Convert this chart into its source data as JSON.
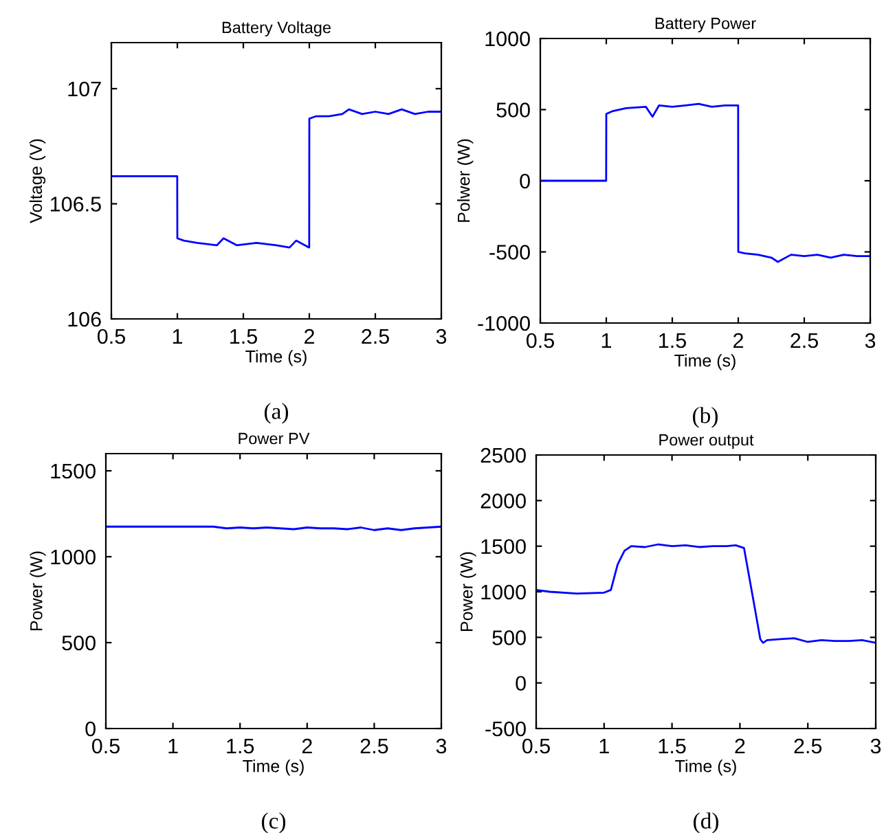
{
  "chart_data": [
    {
      "type": "line",
      "title": "Battery Voltage",
      "xlabel": "Time (s)",
      "ylabel": "Voltage (V)",
      "annotations": [
        "(a)"
      ],
      "x": [
        0.5,
        0.999,
        1.0,
        1.05,
        1.15,
        1.3,
        1.35,
        1.45,
        1.6,
        1.75,
        1.85,
        1.9,
        1.999,
        2.0,
        2.05,
        2.15,
        2.25,
        2.3,
        2.4,
        2.5,
        2.6,
        2.7,
        2.8,
        2.9,
        3.0
      ],
      "series": [
        {
          "color": "#0000ff",
          "values": [
            106.62,
            106.62,
            106.35,
            106.34,
            106.33,
            106.32,
            106.35,
            106.32,
            106.33,
            106.32,
            106.31,
            106.34,
            106.31,
            106.87,
            106.88,
            106.88,
            106.89,
            106.91,
            106.89,
            106.9,
            106.89,
            106.91,
            106.89,
            106.9,
            106.9
          ]
        }
      ],
      "xlim": [
        0.5,
        3
      ],
      "ylim": [
        106,
        107.2
      ],
      "xticks": [
        0.5,
        1,
        1.5,
        2,
        2.5,
        3
      ],
      "yticks": [
        106,
        106.5,
        107
      ]
    },
    {
      "type": "line",
      "title": "Battery Power",
      "xlabel": "Time (s)",
      "ylabel": "Polwer (W)",
      "annotations": [
        "(b)"
      ],
      "x": [
        0.5,
        0.999,
        1.0,
        1.05,
        1.15,
        1.3,
        1.35,
        1.4,
        1.5,
        1.6,
        1.7,
        1.8,
        1.9,
        1.999,
        2.0,
        2.05,
        2.15,
        2.25,
        2.3,
        2.4,
        2.5,
        2.6,
        2.7,
        2.8,
        2.9,
        3.0
      ],
      "series": [
        {
          "color": "#0000ff",
          "values": [
            0,
            0,
            470,
            490,
            510,
            520,
            450,
            530,
            520,
            530,
            540,
            520,
            530,
            530,
            -500,
            -510,
            -520,
            -540,
            -570,
            -520,
            -530,
            -520,
            -540,
            -520,
            -530,
            -530
          ]
        }
      ],
      "xlim": [
        0.5,
        3
      ],
      "ylim": [
        -1000,
        1000
      ],
      "xticks": [
        0.5,
        1,
        1.5,
        2,
        2.5,
        3
      ],
      "yticks": [
        -1000,
        -500,
        0,
        500,
        1000
      ]
    },
    {
      "type": "line",
      "title": "Power PV",
      "xlabel": "Time (s)",
      "ylabel": "Power (W)",
      "annotations": [
        "(c)"
      ],
      "x": [
        0.5,
        1.3,
        1.4,
        1.5,
        1.6,
        1.7,
        1.8,
        1.9,
        2.0,
        2.1,
        2.2,
        2.3,
        2.4,
        2.5,
        2.6,
        2.7,
        2.8,
        3.0
      ],
      "series": [
        {
          "color": "#0000ff",
          "values": [
            1175,
            1175,
            1165,
            1170,
            1165,
            1170,
            1165,
            1160,
            1170,
            1165,
            1165,
            1160,
            1170,
            1155,
            1165,
            1155,
            1165,
            1175
          ]
        }
      ],
      "xlim": [
        0.5,
        3
      ],
      "ylim": [
        0,
        1600
      ],
      "xticks": [
        0.5,
        1,
        1.5,
        2,
        2.5,
        3
      ],
      "yticks": [
        0,
        500,
        1000,
        1500
      ]
    },
    {
      "type": "line",
      "title": "Power output",
      "xlabel": "Time (s)",
      "ylabel": "Power (W)",
      "annotations": [
        "(d)"
      ],
      "x": [
        0.5,
        0.6,
        0.8,
        1.0,
        1.05,
        1.1,
        1.15,
        1.2,
        1.3,
        1.4,
        1.5,
        1.6,
        1.7,
        1.8,
        1.9,
        1.97,
        2.03,
        2.1,
        2.15,
        2.17,
        2.2,
        2.3,
        2.4,
        2.5,
        2.6,
        2.7,
        2.8,
        2.9,
        3.0
      ],
      "series": [
        {
          "color": "#0000ff",
          "values": [
            1020,
            1000,
            980,
            990,
            1020,
            1300,
            1450,
            1500,
            1490,
            1520,
            1500,
            1510,
            1490,
            1500,
            1500,
            1510,
            1480,
            900,
            480,
            440,
            470,
            480,
            490,
            450,
            470,
            460,
            460,
            470,
            440
          ]
        }
      ],
      "xlim": [
        0.5,
        3
      ],
      "ylim": [
        -500,
        2500
      ],
      "xticks": [
        0.5,
        1,
        1.5,
        2,
        2.5,
        3
      ],
      "yticks": [
        -500,
        0,
        500,
        1000,
        1500,
        2000,
        2500
      ]
    }
  ]
}
